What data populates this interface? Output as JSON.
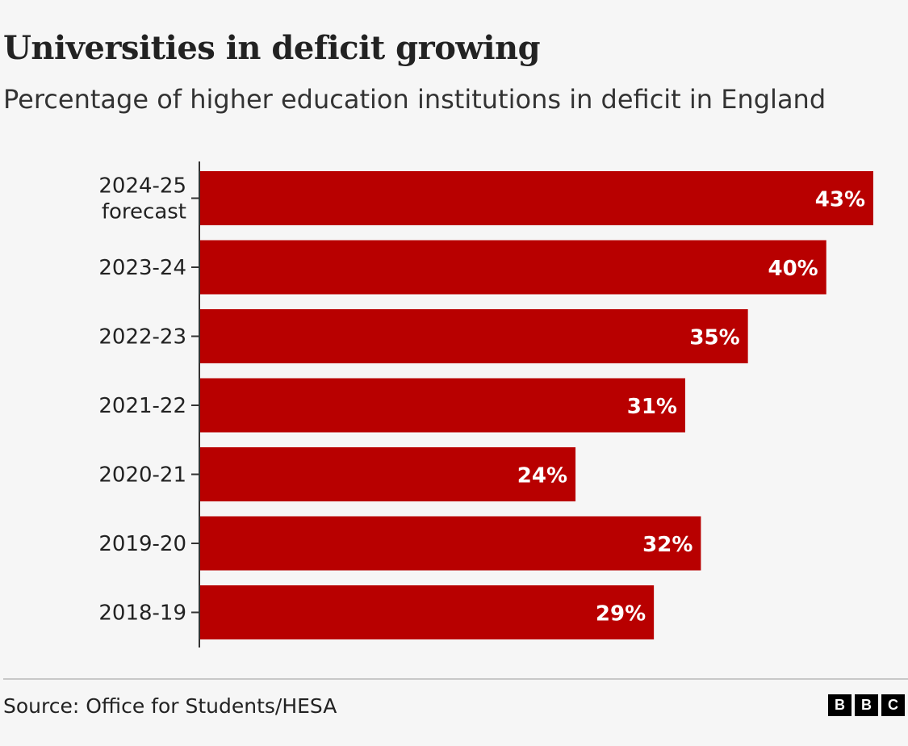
{
  "title": "Universities in deficit growing",
  "subtitle": "Percentage of higher education institutions in deficit in England",
  "source": "Source: Office for Students/HESA",
  "logo": {
    "name": "bbc-logo",
    "letters": [
      "B",
      "B",
      "C"
    ]
  },
  "colors": {
    "bar": "#b80000",
    "background": "#f6f6f6",
    "text": "#222222",
    "bar_label": "#ffffff"
  },
  "chart_data": {
    "type": "bar",
    "orientation": "horizontal",
    "title": "Universities in deficit growing",
    "subtitle": "Percentage of higher education institutions in deficit in England",
    "categories": [
      [
        "2024-25",
        "forecast"
      ],
      [
        "2023-24"
      ],
      [
        "2022-23"
      ],
      [
        "2021-22"
      ],
      [
        "2020-21"
      ],
      [
        "2019-20"
      ],
      [
        "2018-19"
      ]
    ],
    "values": [
      43,
      40,
      35,
      31,
      24,
      32,
      29
    ],
    "value_labels": [
      "43%",
      "40%",
      "35%",
      "31%",
      "24%",
      "32%",
      "29%"
    ],
    "xlim": [
      0,
      43
    ],
    "xlabel": "",
    "ylabel": "",
    "grid": false
  }
}
